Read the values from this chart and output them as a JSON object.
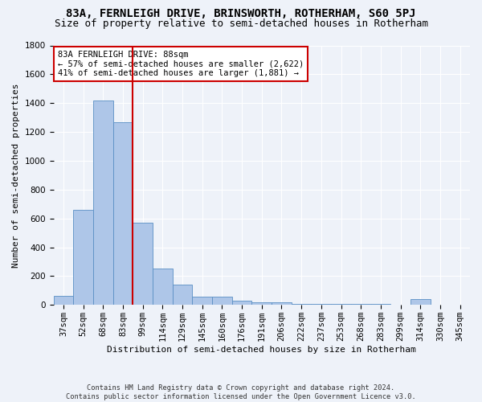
{
  "title": "83A, FERNLEIGH DRIVE, BRINSWORTH, ROTHERHAM, S60 5PJ",
  "subtitle": "Size of property relative to semi-detached houses in Rotherham",
  "xlabel": "Distribution of semi-detached houses by size in Rotherham",
  "ylabel": "Number of semi-detached properties",
  "categories": [
    "37sqm",
    "52sqm",
    "68sqm",
    "83sqm",
    "99sqm",
    "114sqm",
    "129sqm",
    "145sqm",
    "160sqm",
    "176sqm",
    "191sqm",
    "206sqm",
    "222sqm",
    "237sqm",
    "253sqm",
    "268sqm",
    "283sqm",
    "299sqm",
    "314sqm",
    "330sqm",
    "345sqm"
  ],
  "values": [
    65,
    660,
    1420,
    1270,
    570,
    250,
    140,
    60,
    55,
    30,
    20,
    20,
    10,
    10,
    10,
    10,
    5,
    0,
    40,
    0,
    0
  ],
  "bar_color": "#aec6e8",
  "bar_edge_color": "#5a8fc4",
  "highlight_line_color": "#cc0000",
  "annotation_text": "83A FERNLEIGH DRIVE: 88sqm\n← 57% of semi-detached houses are smaller (2,622)\n41% of semi-detached houses are larger (1,881) →",
  "annotation_box_color": "#cc0000",
  "ylim": [
    0,
    1800
  ],
  "yticks": [
    0,
    200,
    400,
    600,
    800,
    1000,
    1200,
    1400,
    1600,
    1800
  ],
  "footnote": "Contains HM Land Registry data © Crown copyright and database right 2024.\nContains public sector information licensed under the Open Government Licence v3.0.",
  "title_fontsize": 10,
  "subtitle_fontsize": 9,
  "label_fontsize": 8,
  "tick_fontsize": 7.5,
  "annotation_fontsize": 7.5,
  "background_color": "#eef2f9",
  "plot_background": "#eef2f9"
}
